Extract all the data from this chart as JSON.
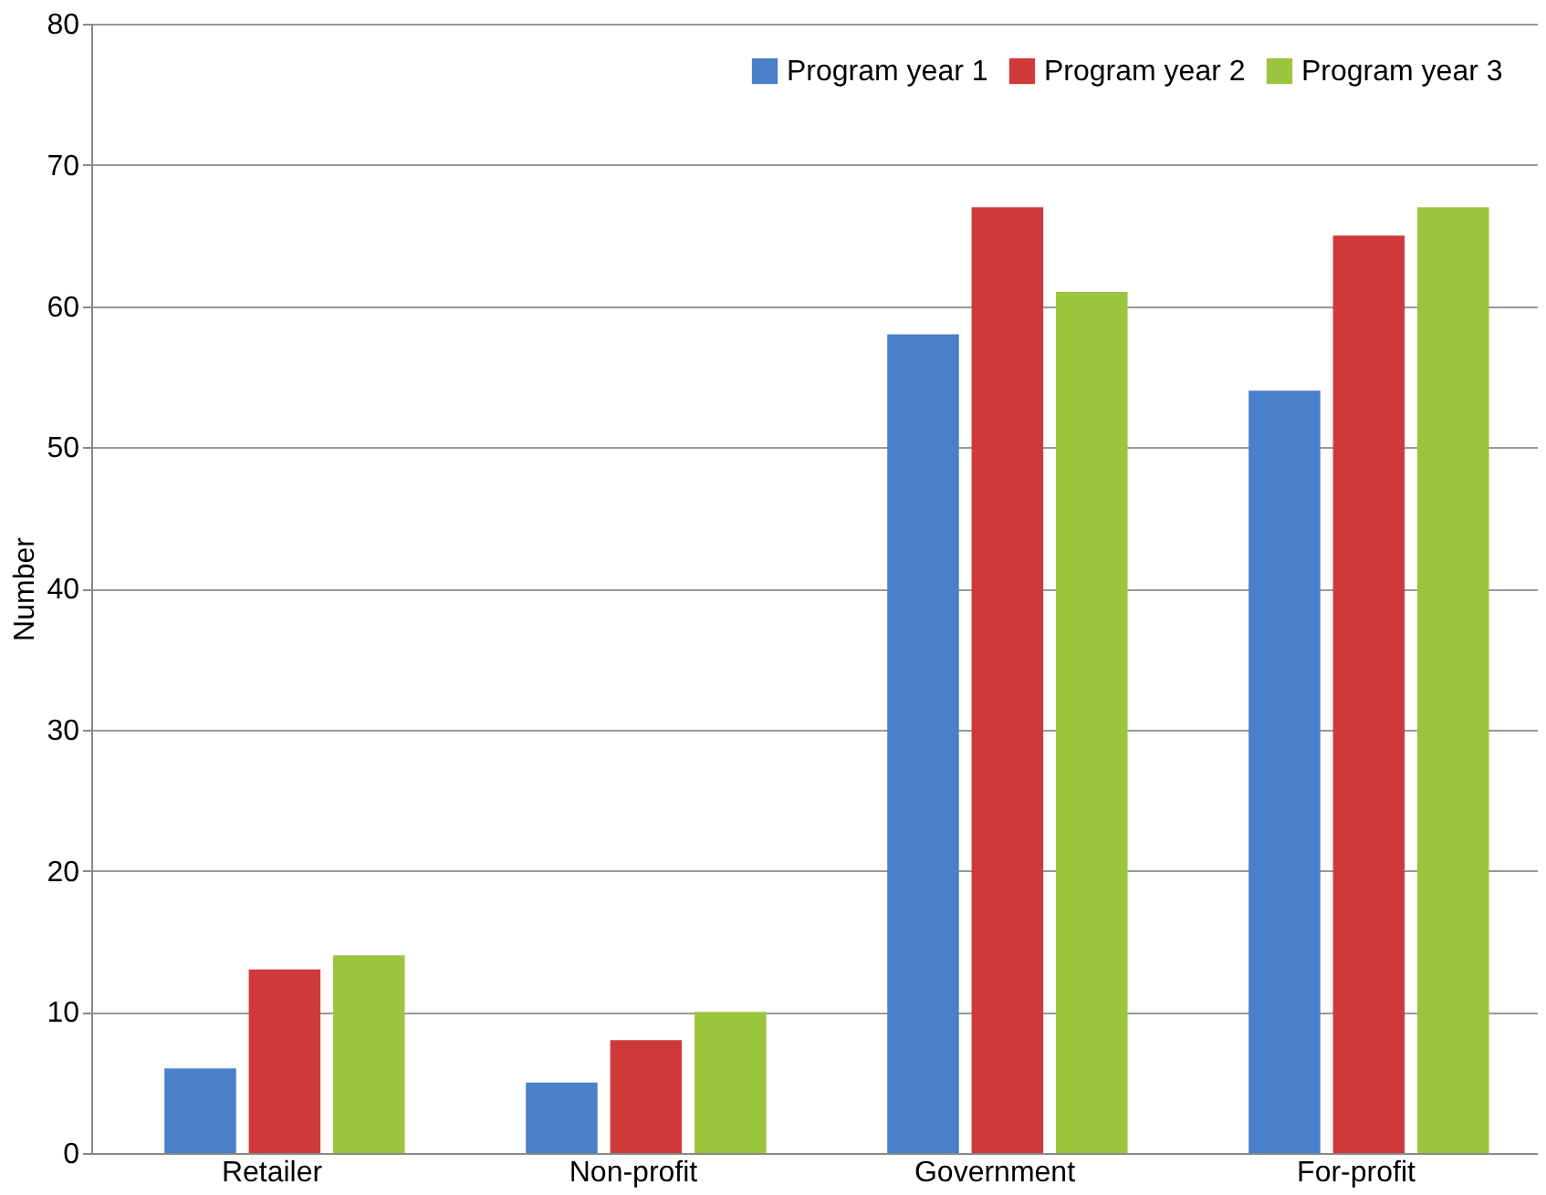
{
  "chart_data": {
    "type": "bar",
    "ylabel": "Number",
    "categories": [
      "Retailer",
      "Non-profit",
      "Government",
      "For-profit"
    ],
    "series": [
      {
        "name": "Program year 1",
        "color": "#4a7fc9",
        "values": [
          6,
          5,
          58,
          54
        ]
      },
      {
        "name": "Program year 2",
        "color": "#d0393a",
        "values": [
          13,
          8,
          67,
          65
        ]
      },
      {
        "name": "Program year 3",
        "color": "#9bc53d",
        "values": [
          14,
          10,
          61,
          67
        ]
      }
    ],
    "ylim": [
      0,
      80
    ],
    "yticks": [
      0,
      10,
      20,
      30,
      40,
      50,
      60,
      70,
      80
    ],
    "grid": "y",
    "legend": "top right"
  }
}
